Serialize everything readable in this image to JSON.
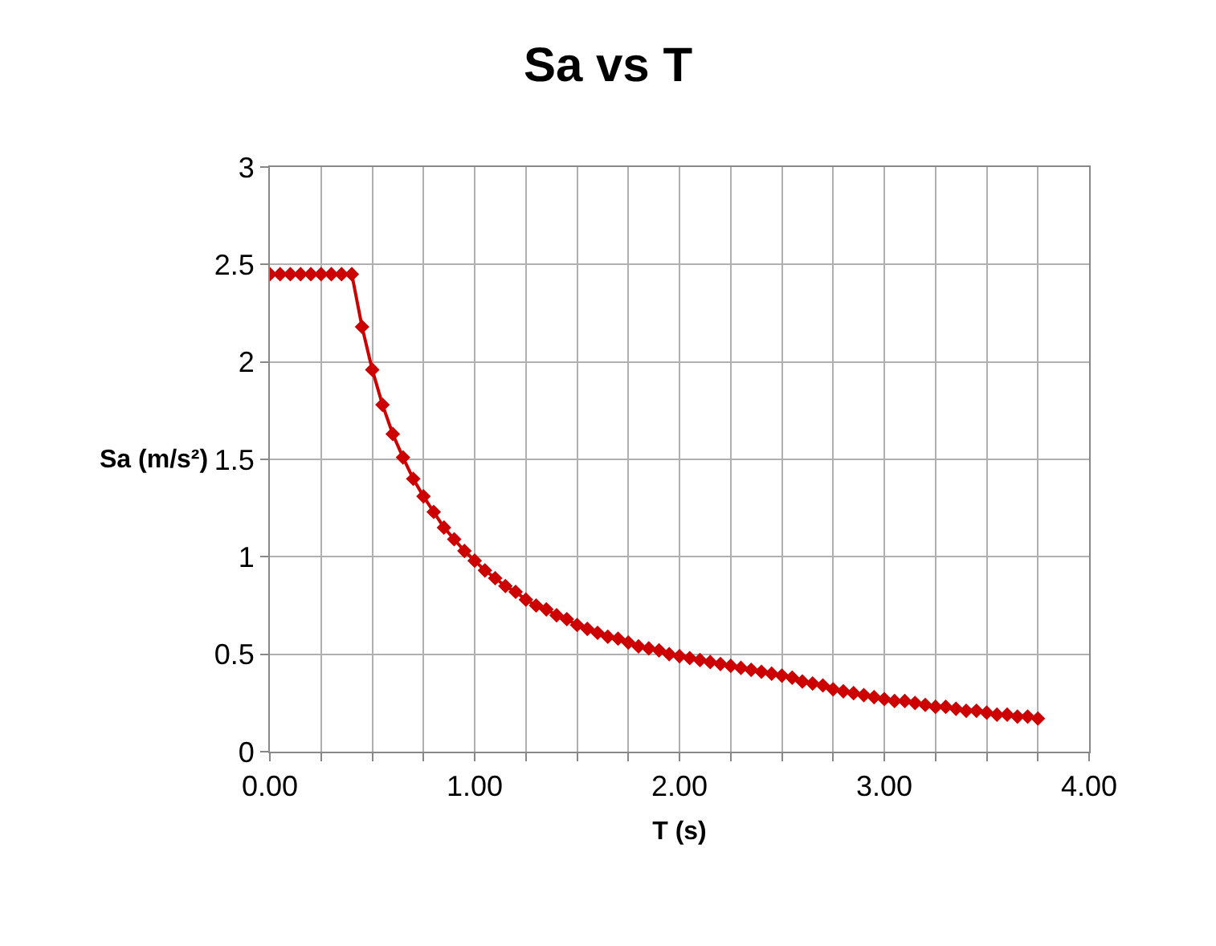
{
  "chart_data": {
    "type": "line",
    "title": "Sa vs T",
    "xlabel": "T (s)",
    "ylabel": "Sa (m/s²)",
    "x": [
      0,
      0.05,
      0.1,
      0.15,
      0.2,
      0.25,
      0.3,
      0.35,
      0.4,
      0.45,
      0.5,
      0.55,
      0.6,
      0.65,
      0.7,
      0.75,
      0.8,
      0.85,
      0.9,
      0.95,
      1.0,
      1.05,
      1.1,
      1.15,
      1.2,
      1.25,
      1.3,
      1.35,
      1.4,
      1.45,
      1.5,
      1.55,
      1.6,
      1.65,
      1.7,
      1.75,
      1.8,
      1.85,
      1.9,
      1.95,
      2.0,
      2.05,
      2.1,
      2.15,
      2.2,
      2.25,
      2.3,
      2.35,
      2.4,
      2.45,
      2.5,
      2.55,
      2.6,
      2.65,
      2.7,
      2.75,
      2.8,
      2.85,
      2.9,
      2.95,
      3.0,
      3.05,
      3.1,
      3.15,
      3.2,
      3.25,
      3.3,
      3.35,
      3.4,
      3.45,
      3.5,
      3.55,
      3.6,
      3.65,
      3.7,
      3.75
    ],
    "series": [
      {
        "color": "#cc0000",
        "values": [
          2.45,
          2.45,
          2.45,
          2.45,
          2.45,
          2.45,
          2.45,
          2.45,
          2.45,
          2.18,
          1.96,
          1.78,
          1.63,
          1.51,
          1.4,
          1.31,
          1.23,
          1.15,
          1.09,
          1.03,
          0.98,
          0.93,
          0.89,
          0.85,
          0.82,
          0.78,
          0.75,
          0.73,
          0.7,
          0.68,
          0.65,
          0.63,
          0.61,
          0.59,
          0.58,
          0.56,
          0.54,
          0.53,
          0.52,
          0.5,
          0.49,
          0.48,
          0.47,
          0.46,
          0.45,
          0.44,
          0.43,
          0.42,
          0.41,
          0.4,
          0.39,
          0.38,
          0.36,
          0.35,
          0.34,
          0.32,
          0.31,
          0.3,
          0.29,
          0.28,
          0.27,
          0.26,
          0.26,
          0.25,
          0.24,
          0.23,
          0.23,
          0.22,
          0.21,
          0.21,
          0.2,
          0.19,
          0.19,
          0.18,
          0.18,
          0.17
        ]
      }
    ],
    "xlim": [
      0,
      4
    ],
    "xticks": [
      {
        "value": 0,
        "label": "0.00"
      },
      {
        "value": 0.25,
        "label": null
      },
      {
        "value": 0.5,
        "label": null
      },
      {
        "value": 0.75,
        "label": null
      },
      {
        "value": 1,
        "label": "1.00"
      },
      {
        "value": 1.25,
        "label": null
      },
      {
        "value": 1.5,
        "label": null
      },
      {
        "value": 1.75,
        "label": null
      },
      {
        "value": 2,
        "label": "2.00"
      },
      {
        "value": 2.25,
        "label": null
      },
      {
        "value": 2.5,
        "label": null
      },
      {
        "value": 2.75,
        "label": null
      },
      {
        "value": 3,
        "label": "3.00"
      },
      {
        "value": 3.25,
        "label": null
      },
      {
        "value": 3.5,
        "label": null
      },
      {
        "value": 3.75,
        "label": null
      },
      {
        "value": 4,
        "label": "4.00"
      }
    ],
    "ylim": [
      0,
      3
    ],
    "yticks": [
      0,
      0.5,
      1,
      1.5,
      2,
      2.5,
      3
    ],
    "grid": true,
    "marker": "diamond",
    "line_style": "solid"
  }
}
